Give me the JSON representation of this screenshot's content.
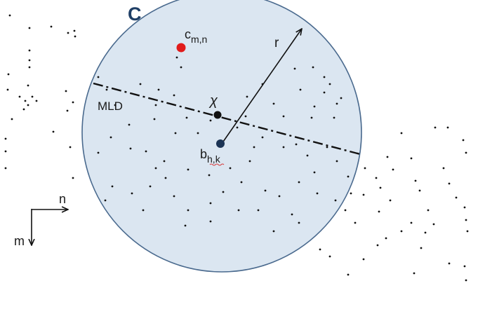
{
  "circle_label": "C",
  "radius_label": "r",
  "line_label": "MLD",
  "center_point": {
    "base": "b",
    "subscript": "h,k"
  },
  "centroid_label": "χ",
  "highlight_point": {
    "base": "c",
    "subscript": "m,n"
  },
  "axes": {
    "horizontal": "n",
    "vertical": "m"
  },
  "colors": {
    "circle_fill": "#dbe6f1",
    "circle_stroke": "#4a6a8e",
    "circle_label": "#1f3f66",
    "center_dot": "#1c3455",
    "highlight_dot": "#e11b1b",
    "points": "#111111"
  }
}
